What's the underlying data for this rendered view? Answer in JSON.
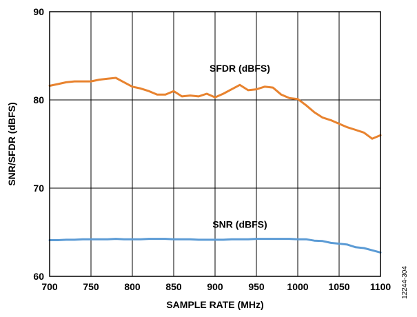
{
  "chart_data": {
    "type": "line",
    "title": "",
    "xlabel": "SAMPLE RATE (MHz)",
    "ylabel": "SNR/SFDR (dBFS)",
    "xlim": [
      700,
      1100
    ],
    "ylim": [
      60,
      90
    ],
    "x_ticks": [
      700,
      750,
      800,
      850,
      900,
      950,
      1000,
      1050,
      1100
    ],
    "y_ticks": [
      60,
      70,
      80,
      90
    ],
    "grid": true,
    "series": [
      {
        "name": "SFDR (dBFS)",
        "color": "#E8832F",
        "x": [
          700,
          710,
          720,
          730,
          740,
          750,
          760,
          770,
          780,
          790,
          800,
          810,
          820,
          830,
          840,
          850,
          860,
          870,
          880,
          890,
          900,
          910,
          920,
          930,
          940,
          950,
          960,
          970,
          980,
          990,
          1000,
          1010,
          1020,
          1030,
          1040,
          1050,
          1060,
          1070,
          1080,
          1090,
          1100
        ],
        "y": [
          81.6,
          81.8,
          82.0,
          82.1,
          82.1,
          82.1,
          82.3,
          82.4,
          82.5,
          82.0,
          81.5,
          81.3,
          81.0,
          80.6,
          80.6,
          81.0,
          80.4,
          80.5,
          80.4,
          80.7,
          80.3,
          80.7,
          81.2,
          81.7,
          81.1,
          81.2,
          81.5,
          81.4,
          80.6,
          80.2,
          80.1,
          79.4,
          78.6,
          78.0,
          77.7,
          77.3,
          76.9,
          76.6,
          76.3,
          75.6,
          76.0
        ]
      },
      {
        "name": "SNR (dBFS)",
        "color": "#5B9BD5",
        "x": [
          700,
          710,
          720,
          730,
          740,
          750,
          760,
          770,
          780,
          790,
          800,
          810,
          820,
          830,
          840,
          850,
          860,
          870,
          880,
          890,
          900,
          910,
          920,
          930,
          940,
          950,
          960,
          970,
          980,
          990,
          1000,
          1010,
          1020,
          1030,
          1040,
          1050,
          1060,
          1070,
          1080,
          1090,
          1100
        ],
        "y": [
          64.1,
          64.1,
          64.15,
          64.15,
          64.2,
          64.2,
          64.2,
          64.2,
          64.25,
          64.2,
          64.2,
          64.2,
          64.25,
          64.25,
          64.25,
          64.2,
          64.2,
          64.2,
          64.15,
          64.15,
          64.15,
          64.15,
          64.2,
          64.2,
          64.2,
          64.25,
          64.25,
          64.25,
          64.25,
          64.25,
          64.2,
          64.2,
          64.05,
          64.0,
          63.8,
          63.7,
          63.6,
          63.3,
          63.2,
          62.95,
          62.7
        ]
      }
    ],
    "annotations": [
      {
        "text": "SFDR (dBFS)",
        "x": 930,
        "y": 83.2
      },
      {
        "text": "SNR (dBFS)",
        "x": 930,
        "y": 65.5
      }
    ],
    "figure_id": "12244-304"
  }
}
